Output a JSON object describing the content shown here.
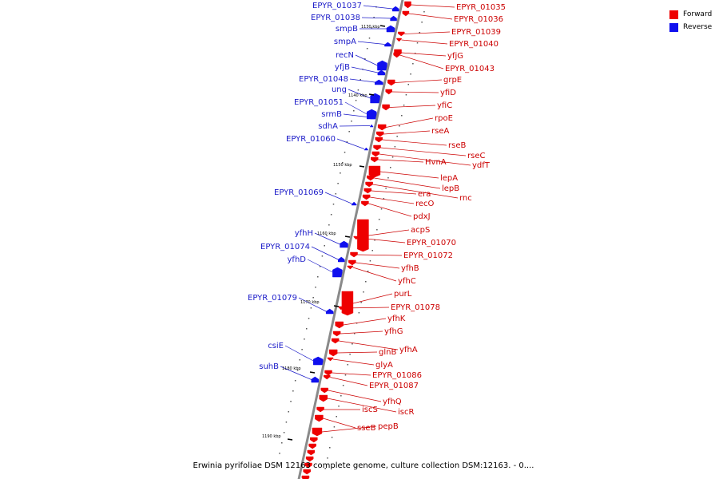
{
  "legend": [
    {
      "label": "Forward",
      "color": "#ee0000"
    },
    {
      "label": "Reverse",
      "color": "#1010ee"
    }
  ],
  "caption": "Erwinia pyrifoliae DSM 12163 complete genome, culture collection DSM:12163. - 0....",
  "kbp_labels": [
    "1130 kbp",
    "1140 kbp",
    "1150 kbp",
    "1160 kbp",
    "1170 kbp",
    "1180 kbp",
    "1190 kbp"
  ],
  "reverse_genes": [
    "EPYR_01037",
    "EPYR_01038",
    "smpB",
    "smpA",
    "recN",
    "yfjB",
    "EPYR_01048",
    "ung",
    "EPYR_01051",
    "srmB",
    "sdhA",
    "EPYR_01060",
    "EPYR_01069",
    "yfhH",
    "EPYR_01074",
    "yfhD",
    "EPYR_01079",
    "csiE",
    "suhB"
  ],
  "forward_genes": [
    "EPYR_01035",
    "EPYR_01036",
    "EPYR_01039",
    "EPYR_01040",
    "yfjG",
    "EPYR_01043",
    "grpE",
    "yfiD",
    "yfiC",
    "rpoE",
    "rseA",
    "rseB",
    "rseC",
    "ydfT",
    "HvnA",
    "lepA",
    "lepB",
    "rnc",
    "era",
    "recO",
    "pdxJ",
    "acpS",
    "EPYR_01070",
    "EPYR_01072",
    "yfhB",
    "yfhC",
    "purL",
    "EPYR_01078",
    "yfhK",
    "yfhG",
    "yfhA",
    "glnB",
    "glyA",
    "EPYR_01086",
    "EPYR_01087",
    "yfhQ",
    "iscR",
    "iscS",
    "sseB",
    "pepB"
  ],
  "colors": {
    "forward": "#ee0000",
    "reverse": "#1010ee",
    "forward_label": "#cc0000",
    "reverse_label": "#1a1ac8",
    "backbone": "#8a8a8a"
  }
}
